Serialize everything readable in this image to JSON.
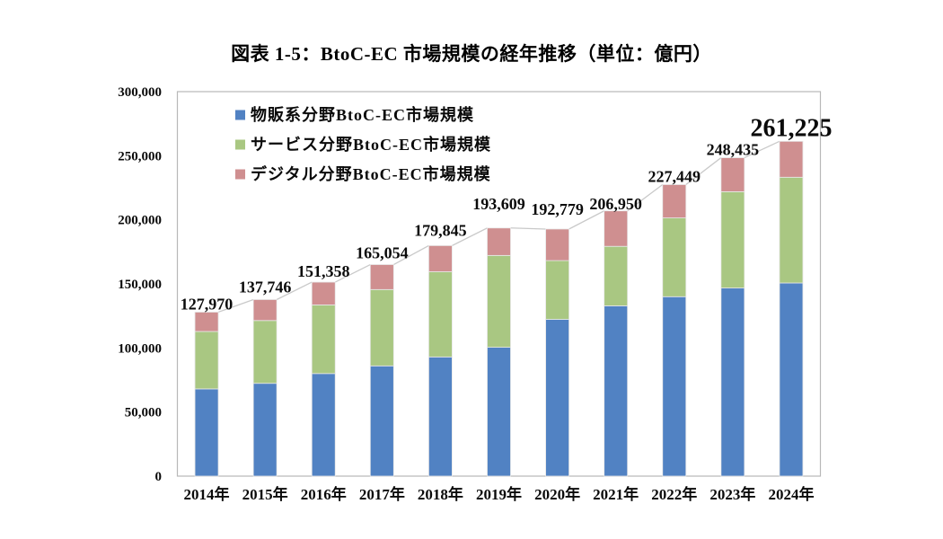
{
  "chart_data": {
    "type": "bar",
    "stacked": true,
    "title": "図表 1-5：BtoC-EC 市場規模の経年推移（単位：億円）",
    "unit_label": "億円",
    "categories": [
      "2014年",
      "2015年",
      "2016年",
      "2017年",
      "2018年",
      "2019年",
      "2020年",
      "2021年",
      "2022年",
      "2023年",
      "2024年"
    ],
    "series": [
      {
        "name": "物販系分野BtoC-EC市場規模",
        "color": "#5182c3",
        "values": [
          68043,
          72398,
          80043,
          86008,
          92992,
          100515,
          122333,
          132865,
          139997,
          146760,
          150700
        ]
      },
      {
        "name": "サービス分野BtoC-EC市場規模",
        "color": "#a9c782",
        "values": [
          44816,
          49014,
          53532,
          59568,
          66471,
          71672,
          45832,
          46424,
          61477,
          75169,
          82500
        ]
      },
      {
        "name": "デジタル分野BtoC-EC市場規模",
        "color": "#cf8f90",
        "values": [
          15111,
          16334,
          17783,
          19478,
          20382,
          21422,
          24614,
          27661,
          25975,
          26506,
          28025
        ]
      }
    ],
    "totals": [
      127970,
      137746,
      151358,
      165054,
      179845,
      193609,
      192779,
      206950,
      227449,
      248435,
      261225
    ],
    "total_labels": [
      "127,970",
      "137,746",
      "151,358",
      "165,054",
      "179,845",
      "193,609",
      "192,779",
      "206,950",
      "227,449",
      "248,435",
      "261,225"
    ],
    "y_tick_values": [
      0,
      50000,
      100000,
      150000,
      200000,
      250000,
      300000
    ],
    "y_tick_labels": [
      "0",
      "50,000",
      "100,000",
      "150,000",
      "200,000",
      "250,000",
      "300,000"
    ],
    "ylim": [
      0,
      300000
    ],
    "grid": false,
    "legend_position": "top-left-inside",
    "series_connector_lines": true,
    "layout": {
      "label_gaps": [
        3,
        8,
        6,
        7,
        11,
        21,
        16,
        2,
        3,
        3,
        6
      ],
      "last_label_emphasized": true
    },
    "colors": {
      "frame": "#b8b8b8",
      "connector_line": "#c9c9c9",
      "text": "#0a0a0a",
      "background": "#ffffff"
    }
  }
}
